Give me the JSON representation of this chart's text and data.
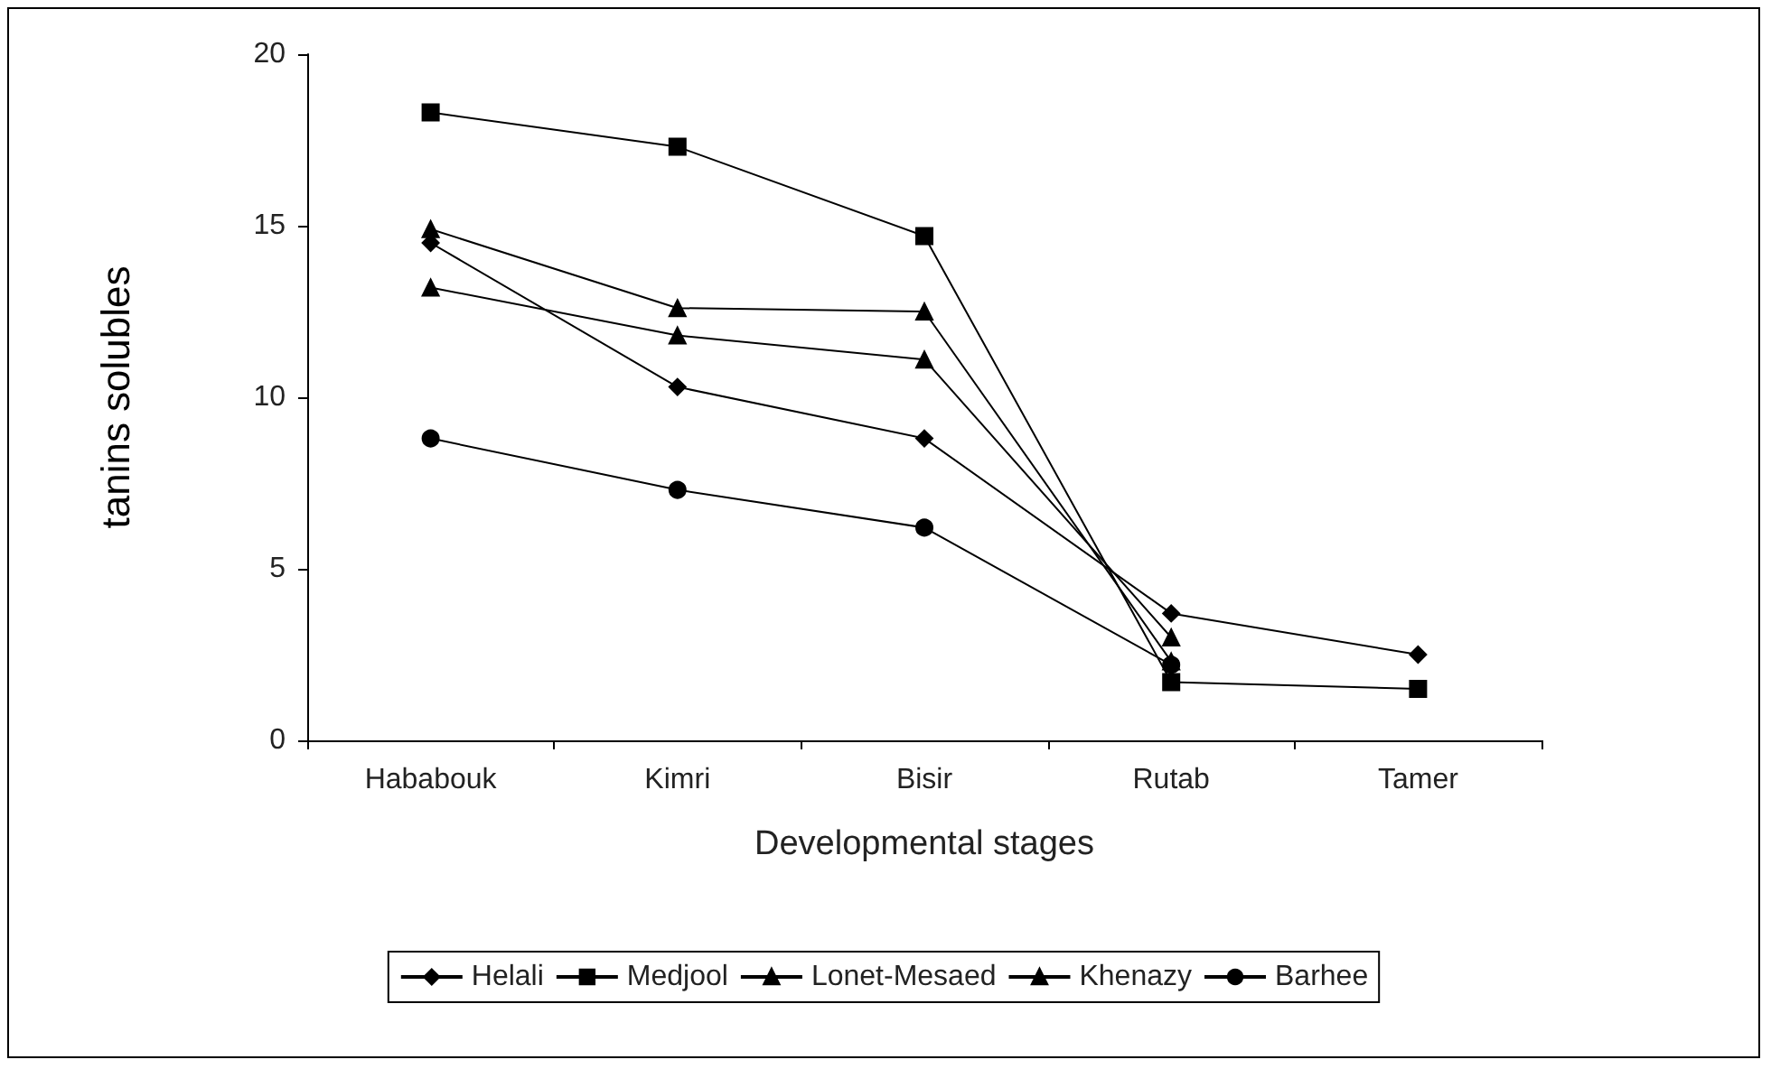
{
  "chart_data": {
    "type": "line",
    "xlabel": "Developmental stages",
    "ylabel": "tanins solubles",
    "categories": [
      "Hababouk",
      "Kimri",
      "Bisir",
      "Rutab",
      "Tamer"
    ],
    "series": [
      {
        "name": "Helali",
        "color": "#000000",
        "marker": "diamond",
        "values": [
          14.5,
          10.3,
          8.8,
          3.7,
          2.5
        ]
      },
      {
        "name": "Medjool",
        "color": "#000000",
        "marker": "square",
        "values": [
          18.3,
          17.3,
          14.7,
          1.7,
          1.5
        ]
      },
      {
        "name": "Lonet-Mesaed",
        "color": "#000000",
        "marker": "triangle",
        "values": [
          13.2,
          11.8,
          11.1,
          3.0,
          null
        ]
      },
      {
        "name": "Khenazy",
        "color": "#000000",
        "marker": "triangle",
        "values": [
          14.9,
          12.6,
          12.5,
          2.3,
          null
        ]
      },
      {
        "name": "Barhee",
        "color": "#000000",
        "marker": "circle",
        "values": [
          8.8,
          7.3,
          6.2,
          2.2,
          null
        ]
      }
    ],
    "ylim": [
      0,
      20
    ],
    "yticks": [
      0,
      5,
      10,
      15,
      20
    ],
    "grid": false,
    "legend": "bottom",
    "line_style": "solid"
  }
}
